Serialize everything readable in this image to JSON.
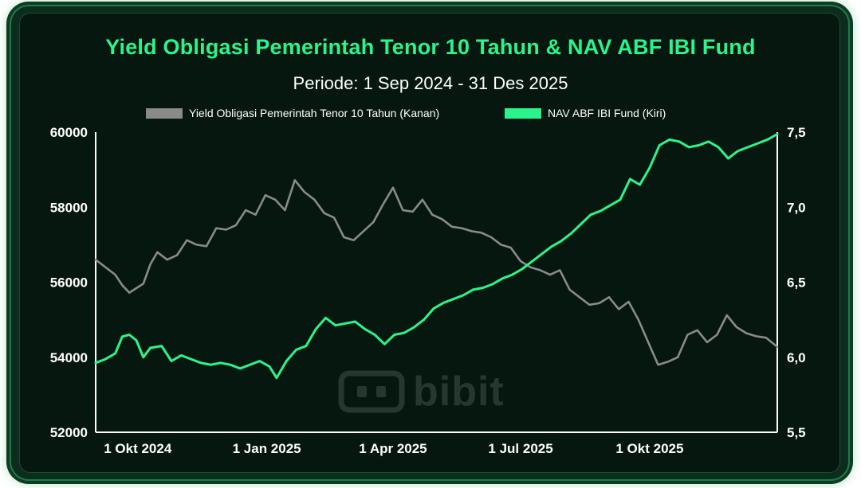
{
  "chart_data": {
    "type": "line",
    "title": "Yield Obligasi Pemerintah Tenor 10 Tahun & NAV ABF IBI Fund",
    "subtitle": "Periode: 1 Sep 2024 - 31 Des 2025",
    "x_range": [
      "2024-09-01",
      "2025-12-31"
    ],
    "x_ticks": [
      {
        "date": "2024-10-01",
        "label": "1 Okt 2024"
      },
      {
        "date": "2025-01-01",
        "label": "1 Jan 2025"
      },
      {
        "date": "2025-04-01",
        "label": "1 Apr 2025"
      },
      {
        "date": "2025-07-01",
        "label": "1 Jul 2025"
      },
      {
        "date": "2025-10-01",
        "label": "1 Okt 2025"
      }
    ],
    "y_left": {
      "ylim": [
        52000,
        60000
      ],
      "ticks": [
        52000,
        54000,
        56000,
        58000,
        60000
      ]
    },
    "y_right": {
      "ylim": [
        5.5,
        7.5
      ],
      "ticks": [
        "5,5",
        "6,0",
        "6,5",
        "7,0",
        "7,5"
      ]
    },
    "grid": false,
    "legend_position": "top",
    "series": [
      {
        "name": "Yield Obligasi Pemerintah Tenor 10 Tahun (Kanan)",
        "axis": "right",
        "color": "#8a8a8a",
        "points": [
          [
            "2024-09-01",
            6.65
          ],
          [
            "2024-09-08",
            6.6
          ],
          [
            "2024-09-15",
            6.55
          ],
          [
            "2024-09-20",
            6.48
          ],
          [
            "2024-09-25",
            6.43
          ],
          [
            "2024-09-30",
            6.46
          ],
          [
            "2024-10-05",
            6.49
          ],
          [
            "2024-10-10",
            6.62
          ],
          [
            "2024-10-15",
            6.7
          ],
          [
            "2024-10-22",
            6.65
          ],
          [
            "2024-10-29",
            6.68
          ],
          [
            "2024-11-05",
            6.78
          ],
          [
            "2024-11-12",
            6.75
          ],
          [
            "2024-11-19",
            6.74
          ],
          [
            "2024-11-26",
            6.86
          ],
          [
            "2024-12-03",
            6.85
          ],
          [
            "2024-12-10",
            6.88
          ],
          [
            "2024-12-17",
            6.98
          ],
          [
            "2024-12-24",
            6.95
          ],
          [
            "2024-12-31",
            7.08
          ],
          [
            "2025-01-07",
            7.05
          ],
          [
            "2025-01-14",
            6.98
          ],
          [
            "2025-01-21",
            7.18
          ],
          [
            "2025-01-28",
            7.1
          ],
          [
            "2025-02-04",
            7.05
          ],
          [
            "2025-02-11",
            6.96
          ],
          [
            "2025-02-18",
            6.93
          ],
          [
            "2025-02-25",
            6.8
          ],
          [
            "2025-03-04",
            6.78
          ],
          [
            "2025-03-11",
            6.84
          ],
          [
            "2025-03-18",
            6.9
          ],
          [
            "2025-03-25",
            7.02
          ],
          [
            "2025-04-01",
            7.13
          ],
          [
            "2025-04-08",
            6.98
          ],
          [
            "2025-04-15",
            6.97
          ],
          [
            "2025-04-22",
            7.05
          ],
          [
            "2025-04-29",
            6.95
          ],
          [
            "2025-05-06",
            6.92
          ],
          [
            "2025-05-13",
            6.87
          ],
          [
            "2025-05-20",
            6.86
          ],
          [
            "2025-05-27",
            6.84
          ],
          [
            "2025-06-03",
            6.83
          ],
          [
            "2025-06-10",
            6.8
          ],
          [
            "2025-06-17",
            6.75
          ],
          [
            "2025-06-24",
            6.73
          ],
          [
            "2025-07-01",
            6.64
          ],
          [
            "2025-07-08",
            6.6
          ],
          [
            "2025-07-15",
            6.58
          ],
          [
            "2025-07-22",
            6.55
          ],
          [
            "2025-07-29",
            6.58
          ],
          [
            "2025-08-05",
            6.45
          ],
          [
            "2025-08-12",
            6.4
          ],
          [
            "2025-08-19",
            6.35
          ],
          [
            "2025-08-26",
            6.36
          ],
          [
            "2025-09-02",
            6.4
          ],
          [
            "2025-09-09",
            6.32
          ],
          [
            "2025-09-16",
            6.37
          ],
          [
            "2025-09-23",
            6.25
          ],
          [
            "2025-09-30",
            6.1
          ],
          [
            "2025-10-07",
            5.95
          ],
          [
            "2025-10-14",
            5.97
          ],
          [
            "2025-10-21",
            6.0
          ],
          [
            "2025-10-28",
            6.15
          ],
          [
            "2025-11-04",
            6.18
          ],
          [
            "2025-11-11",
            6.1
          ],
          [
            "2025-11-18",
            6.15
          ],
          [
            "2025-11-25",
            6.28
          ],
          [
            "2025-12-02",
            6.2
          ],
          [
            "2025-12-09",
            6.16
          ],
          [
            "2025-12-16",
            6.14
          ],
          [
            "2025-12-23",
            6.13
          ],
          [
            "2025-12-31",
            6.07
          ]
        ]
      },
      {
        "name": "NAV ABF IBI Fund (Kiri)",
        "axis": "left",
        "color": "#2af58c",
        "points": [
          [
            "2024-09-01",
            53850
          ],
          [
            "2024-09-08",
            53950
          ],
          [
            "2024-09-15",
            54100
          ],
          [
            "2024-09-20",
            54550
          ],
          [
            "2024-09-25",
            54600
          ],
          [
            "2024-09-30",
            54450
          ],
          [
            "2024-10-05",
            54000
          ],
          [
            "2024-10-10",
            54250
          ],
          [
            "2024-10-18",
            54300
          ],
          [
            "2024-10-25",
            53900
          ],
          [
            "2024-11-01",
            54050
          ],
          [
            "2024-11-08",
            53950
          ],
          [
            "2024-11-15",
            53850
          ],
          [
            "2024-11-22",
            53800
          ],
          [
            "2024-11-29",
            53850
          ],
          [
            "2024-12-06",
            53800
          ],
          [
            "2024-12-13",
            53700
          ],
          [
            "2024-12-20",
            53800
          ],
          [
            "2024-12-27",
            53900
          ],
          [
            "2025-01-03",
            53750
          ],
          [
            "2025-01-08",
            53450
          ],
          [
            "2025-01-15",
            53900
          ],
          [
            "2025-01-22",
            54200
          ],
          [
            "2025-01-29",
            54300
          ],
          [
            "2025-02-05",
            54750
          ],
          [
            "2025-02-12",
            55050
          ],
          [
            "2025-02-19",
            54850
          ],
          [
            "2025-02-26",
            54900
          ],
          [
            "2025-03-05",
            54950
          ],
          [
            "2025-03-12",
            54750
          ],
          [
            "2025-03-19",
            54600
          ],
          [
            "2025-03-26",
            54350
          ],
          [
            "2025-04-02",
            54600
          ],
          [
            "2025-04-09",
            54650
          ],
          [
            "2025-04-16",
            54800
          ],
          [
            "2025-04-23",
            55000
          ],
          [
            "2025-04-30",
            55300
          ],
          [
            "2025-05-07",
            55450
          ],
          [
            "2025-05-14",
            55550
          ],
          [
            "2025-05-21",
            55650
          ],
          [
            "2025-05-28",
            55800
          ],
          [
            "2025-06-04",
            55850
          ],
          [
            "2025-06-11",
            55950
          ],
          [
            "2025-06-18",
            56100
          ],
          [
            "2025-06-25",
            56200
          ],
          [
            "2025-07-02",
            56350
          ],
          [
            "2025-07-09",
            56550
          ],
          [
            "2025-07-16",
            56750
          ],
          [
            "2025-07-23",
            56950
          ],
          [
            "2025-07-30",
            57100
          ],
          [
            "2025-08-06",
            57300
          ],
          [
            "2025-08-13",
            57550
          ],
          [
            "2025-08-20",
            57800
          ],
          [
            "2025-08-27",
            57900
          ],
          [
            "2025-09-03",
            58050
          ],
          [
            "2025-09-10",
            58200
          ],
          [
            "2025-09-17",
            58750
          ],
          [
            "2025-09-24",
            58600
          ],
          [
            "2025-10-01",
            59050
          ],
          [
            "2025-10-08",
            59650
          ],
          [
            "2025-10-15",
            59800
          ],
          [
            "2025-10-22",
            59750
          ],
          [
            "2025-10-29",
            59600
          ],
          [
            "2025-11-05",
            59650
          ],
          [
            "2025-11-12",
            59750
          ],
          [
            "2025-11-19",
            59600
          ],
          [
            "2025-11-26",
            59300
          ],
          [
            "2025-12-03",
            59500
          ],
          [
            "2025-12-10",
            59600
          ],
          [
            "2025-12-17",
            59700
          ],
          [
            "2025-12-24",
            59800
          ],
          [
            "2025-12-31",
            59950
          ]
        ]
      }
    ]
  },
  "watermark": {
    "text": "bibit"
  }
}
